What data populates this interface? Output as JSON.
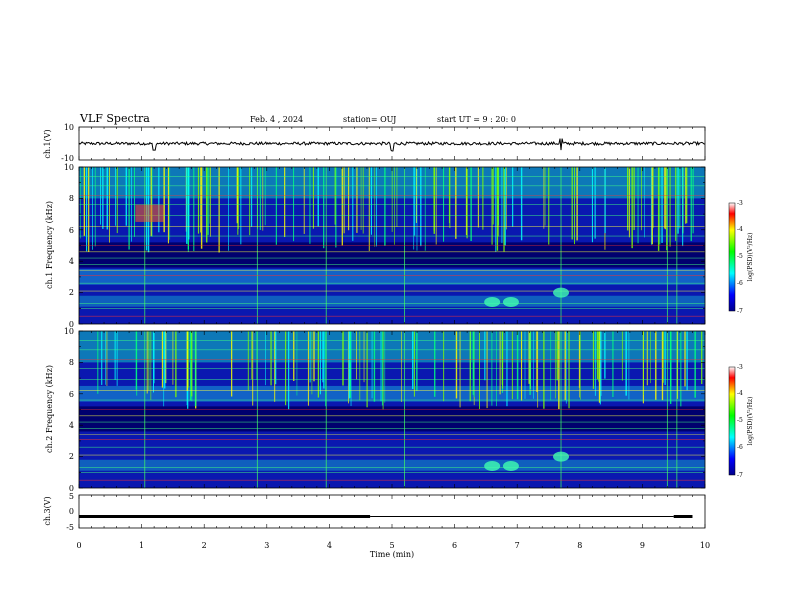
{
  "header": {
    "title": "VLF Spectra",
    "date": "Feb. 4 , 2024",
    "station": "station= OUJ",
    "start": "start  UT =  9 : 20: 0"
  },
  "chart_data": [
    {
      "type": "line",
      "id": "ch1-waveform",
      "ylabel": "ch.1(V)",
      "ylim": [
        -10,
        10
      ],
      "yticks": [
        "10",
        "-10"
      ],
      "xlim": [
        0,
        10
      ],
      "note_values": "near-zero noise waveform with spikes at ~1.2, ~5.0 and ~7.7 min"
    },
    {
      "type": "heatmap",
      "id": "ch1-spectrogram",
      "ylabel": "ch.1 Frequency (kHz)",
      "ylim": [
        0,
        10
      ],
      "yticks": [
        "0",
        "2",
        "4",
        "6",
        "8",
        "10"
      ],
      "xlim": [
        0,
        10
      ],
      "colorbar": {
        "label": "log(PSD)(V²/Hz)",
        "ticks": [
          "-3",
          "-4",
          "-5",
          "-6",
          "-7"
        ],
        "range": [
          -7,
          -3
        ]
      }
    },
    {
      "type": "heatmap",
      "id": "ch2-spectrogram",
      "ylabel": "ch.2 Frequency (kHz)",
      "ylim": [
        0,
        10
      ],
      "yticks": [
        "0",
        "2",
        "4",
        "6",
        "8",
        "10"
      ],
      "xlim": [
        0,
        10
      ],
      "colorbar": {
        "label": "log(PSD)(V²/Hz)",
        "ticks": [
          "-3",
          "-4",
          "-5",
          "-6",
          "-7"
        ],
        "range": [
          -7,
          -3
        ]
      }
    },
    {
      "type": "line",
      "id": "ch3-level",
      "ylabel": "ch.3(V)",
      "ylim": [
        -5,
        5
      ],
      "yticks": [
        "5",
        "0",
        "-5"
      ],
      "xlim": [
        0,
        10
      ],
      "segments": [
        {
          "x": [
            0.0,
            4.65
          ],
          "y": -1.5
        },
        {
          "x": [
            9.5,
            9.8
          ],
          "y": -1.5
        }
      ]
    }
  ],
  "xaxis": {
    "label": "Time  (min)",
    "ticks": [
      "0",
      "1",
      "2",
      "3",
      "4",
      "5",
      "6",
      "7",
      "8",
      "9",
      "10"
    ]
  }
}
